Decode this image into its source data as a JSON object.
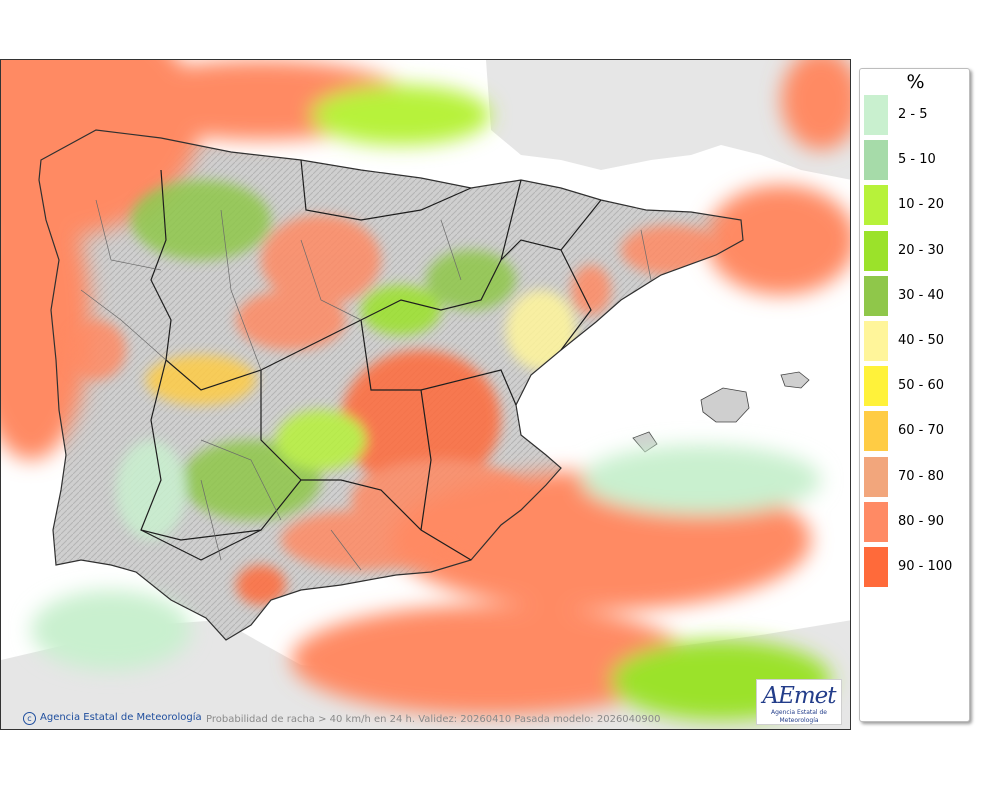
{
  "map": {
    "caption": "Probabilidad de racha > 40 km/h en 24 h. Validez: 20260410 Pasada modelo: 2026040900",
    "copyright": "Agencia Estatal de Meteorología",
    "logo": {
      "word": "AEmet",
      "name": "Agencia Estatal de Meteorología"
    },
    "colors": {
      "land": "#c8c8c8",
      "sea": "#ffffff",
      "foreign_land": "#e6e6e6",
      "border": "#303030"
    }
  },
  "legend": {
    "title": "%",
    "items": [
      {
        "label": "2 - 5",
        "color": "#c9f0cf"
      },
      {
        "label": "5 - 10",
        "color": "#a6dba9"
      },
      {
        "label": "10 - 20",
        "color": "#b7f23a"
      },
      {
        "label": "20 - 30",
        "color": "#9be22a"
      },
      {
        "label": "30 - 40",
        "color": "#8fc74a"
      },
      {
        "label": "40 - 50",
        "color": "#fff59a"
      },
      {
        "label": "50 - 60",
        "color": "#fff23a"
      },
      {
        "label": "60 - 70",
        "color": "#ffcc44"
      },
      {
        "label": "70 - 80",
        "color": "#f2a67c"
      },
      {
        "label": "80 - 90",
        "color": "#ff8a64"
      },
      {
        "label": "90 - 100",
        "color": "#ff6a3a"
      }
    ]
  }
}
